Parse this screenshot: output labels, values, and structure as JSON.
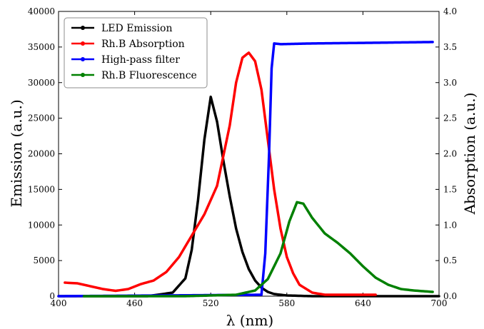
{
  "chart_data": {
    "type": "line",
    "title": "",
    "xlabel": "λ (nm)",
    "ylabel_left": "Emission (a.u.)",
    "ylabel_right": "Absorption (a.u.)",
    "xlim": [
      400,
      700
    ],
    "ylim_left": [
      0,
      40000
    ],
    "ylim_right": [
      0.0,
      4.0
    ],
    "xticks": [
      400,
      460,
      520,
      580,
      640,
      700
    ],
    "yticks_left": [
      0,
      5000,
      10000,
      15000,
      20000,
      25000,
      30000,
      35000,
      40000
    ],
    "yticks_right": [
      0.0,
      0.5,
      1.0,
      1.5,
      2.0,
      2.5,
      3.0,
      3.5,
      4.0
    ],
    "legend_position": "top-left",
    "grid": false,
    "series": [
      {
        "name": "LED Emission",
        "color": "#000000",
        "axis": "left",
        "x": [
          400,
          470,
          490,
          500,
          505,
          510,
          515,
          520,
          525,
          530,
          535,
          540,
          545,
          550,
          555,
          560,
          565,
          570,
          580,
          600,
          650,
          700
        ],
        "y": [
          0,
          0,
          500,
          2500,
          6500,
          13500,
          22000,
          28000,
          24500,
          19000,
          14000,
          9500,
          6200,
          3800,
          2200,
          1200,
          600,
          300,
          100,
          0,
          0,
          0
        ]
      },
      {
        "name": "Rh.B Absorption",
        "color": "#ff0000",
        "axis": "right",
        "x": [
          405,
          415,
          425,
          435,
          445,
          455,
          465,
          475,
          485,
          495,
          505,
          515,
          525,
          535,
          540,
          545,
          550,
          555,
          560,
          565,
          570,
          575,
          580,
          585,
          590,
          600,
          610,
          650
        ],
        "y": [
          0.19,
          0.18,
          0.14,
          0.1,
          0.075,
          0.1,
          0.17,
          0.22,
          0.34,
          0.55,
          0.85,
          1.15,
          1.55,
          2.4,
          3.0,
          3.35,
          3.42,
          3.3,
          2.9,
          2.2,
          1.5,
          0.95,
          0.55,
          0.32,
          0.16,
          0.05,
          0.02,
          0.02
        ]
      },
      {
        "name": "High-pass filter",
        "color": "#0000ff",
        "axis": "right",
        "x": [
          400,
          560,
          563,
          566,
          568,
          570,
          575,
          600,
          650,
          695
        ],
        "y": [
          0.0,
          0.02,
          0.6,
          2.0,
          3.2,
          3.55,
          3.54,
          3.55,
          3.56,
          3.57
        ]
      },
      {
        "name": "Rh.B Fluorescence",
        "color": "#008000",
        "axis": "left",
        "x": [
          420,
          500,
          540,
          555,
          565,
          575,
          582,
          588,
          593,
          600,
          610,
          620,
          630,
          640,
          650,
          660,
          670,
          680,
          695
        ],
        "y": [
          0,
          0,
          200,
          800,
          2400,
          6000,
          10500,
          13200,
          13000,
          11000,
          8800,
          7500,
          6000,
          4200,
          2600,
          1600,
          1000,
          800,
          600
        ]
      }
    ]
  }
}
